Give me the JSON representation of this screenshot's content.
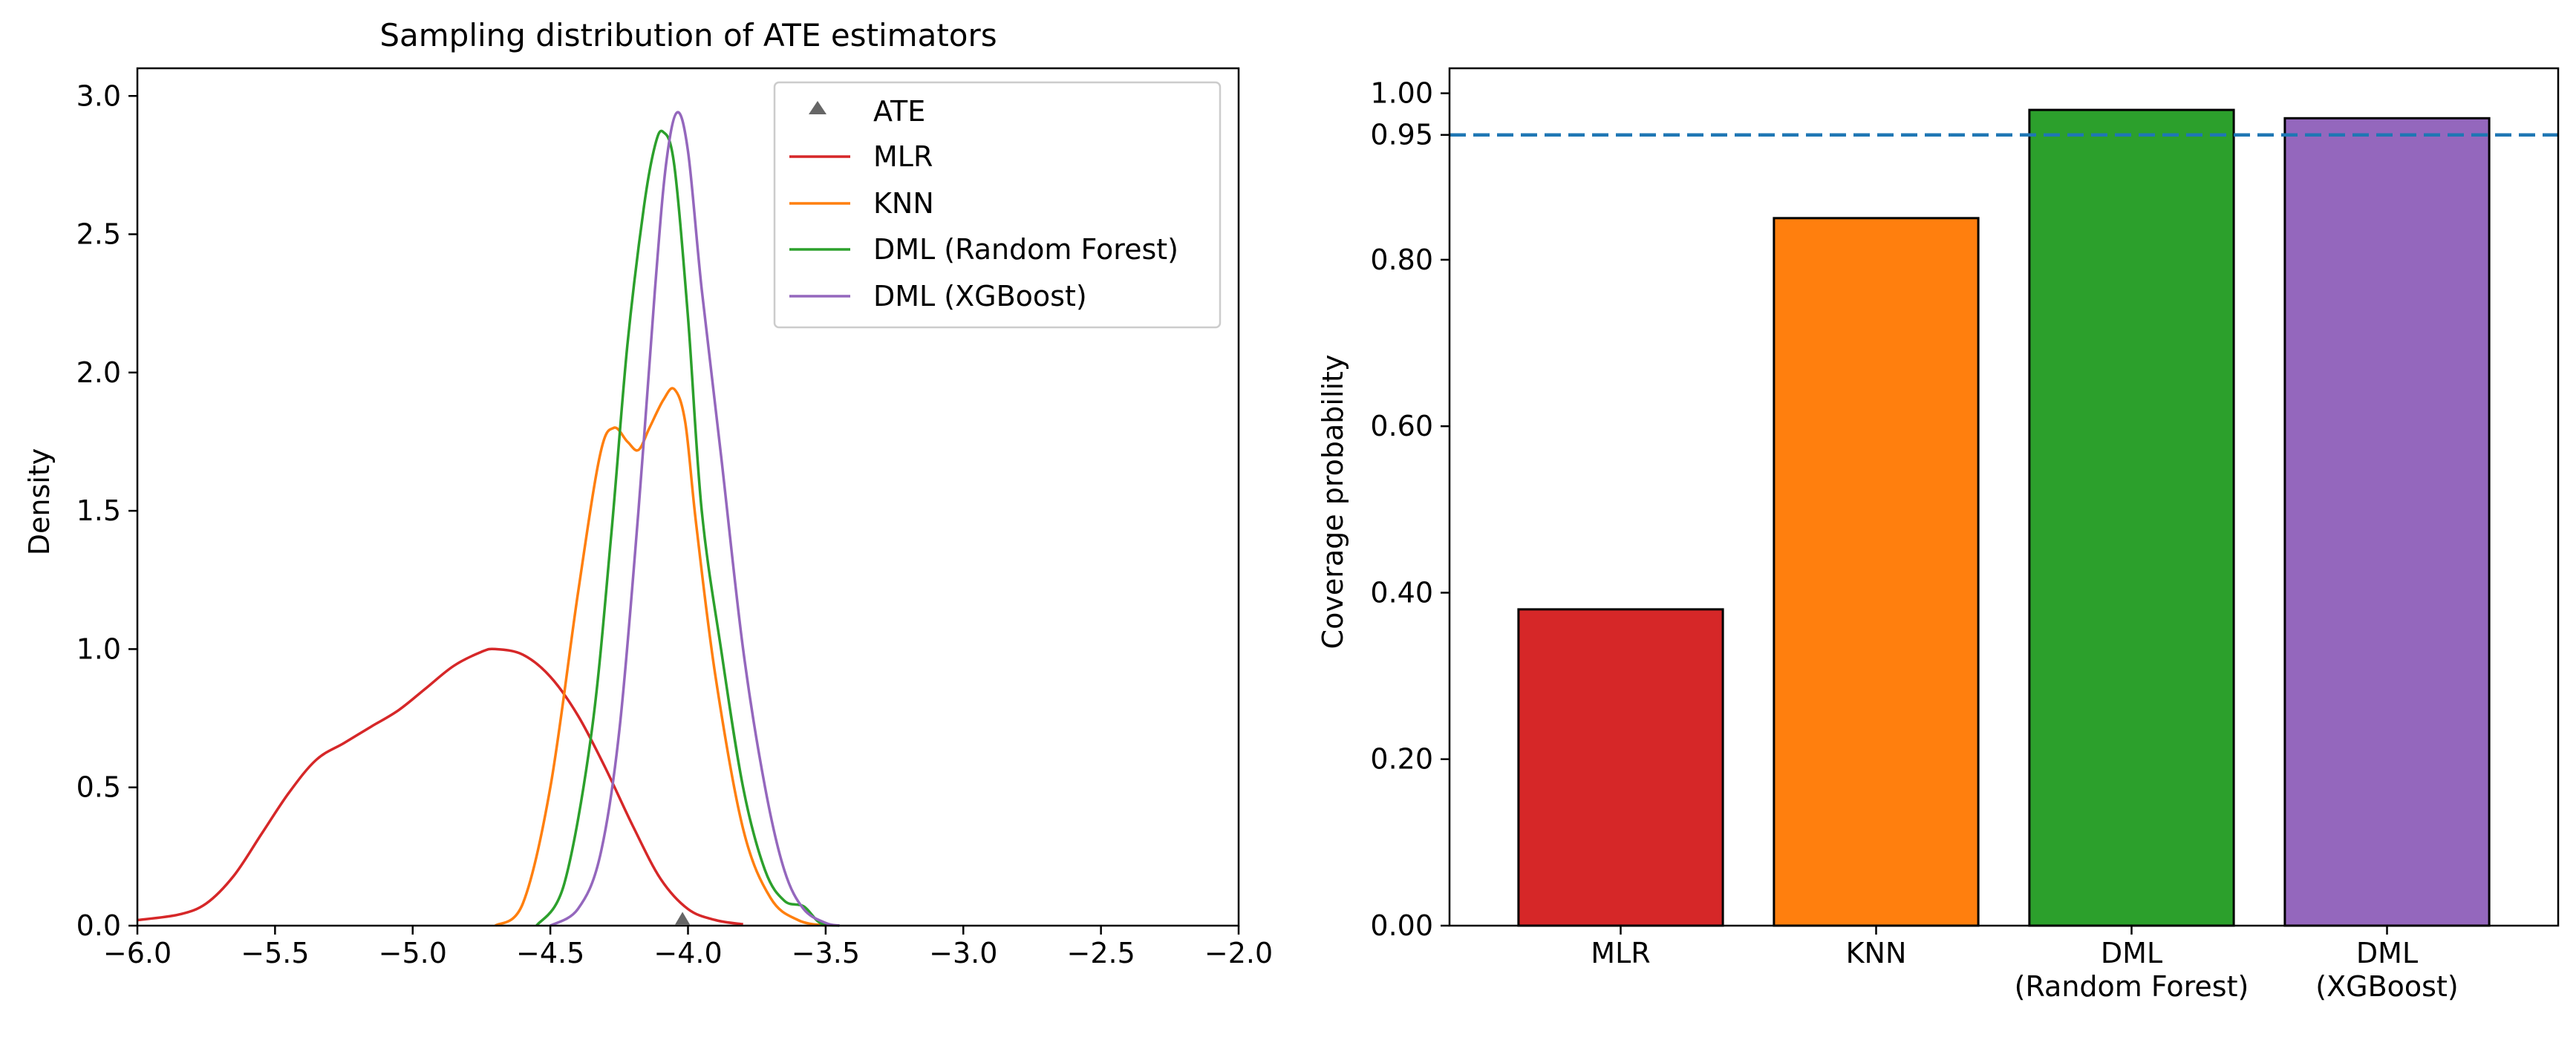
{
  "chart_data": [
    {
      "type": "line",
      "title": "Sampling distribution of ATE estimators",
      "xlabel": "",
      "ylabel": "Density",
      "xlim": [
        -6.0,
        -2.0
      ],
      "ylim": [
        0.0,
        3.1
      ],
      "xticks": [
        -6.0,
        -5.5,
        -5.0,
        -4.5,
        -4.0,
        -3.5,
        -3.0,
        -2.5,
        -2.0
      ],
      "xtick_labels": [
        "−6.0",
        "−5.5",
        "−5.0",
        "−4.5",
        "−4.0",
        "−3.5",
        "−3.0",
        "−2.5",
        "−2.0"
      ],
      "yticks": [
        0.0,
        0.5,
        1.0,
        1.5,
        2.0,
        2.5,
        3.0
      ],
      "ytick_labels": [
        "0.0",
        "0.5",
        "1.0",
        "1.5",
        "2.0",
        "2.5",
        "3.0"
      ],
      "grid": false,
      "legend_position": "top-right",
      "ate_marker": {
        "name": "ATE",
        "x": -4.02,
        "y": 0.02,
        "color": "#666666"
      },
      "series": [
        {
          "name": "MLR",
          "color": "#d62728",
          "points": [
            [
              -6.0,
              0.02
            ],
            [
              -5.85,
              0.04
            ],
            [
              -5.75,
              0.08
            ],
            [
              -5.65,
              0.18
            ],
            [
              -5.55,
              0.33
            ],
            [
              -5.45,
              0.48
            ],
            [
              -5.35,
              0.6
            ],
            [
              -5.25,
              0.66
            ],
            [
              -5.15,
              0.72
            ],
            [
              -5.05,
              0.78
            ],
            [
              -4.95,
              0.86
            ],
            [
              -4.85,
              0.94
            ],
            [
              -4.75,
              0.99
            ],
            [
              -4.7,
              1.0
            ],
            [
              -4.6,
              0.98
            ],
            [
              -4.5,
              0.9
            ],
            [
              -4.4,
              0.76
            ],
            [
              -4.3,
              0.57
            ],
            [
              -4.2,
              0.36
            ],
            [
              -4.1,
              0.17
            ],
            [
              -4.0,
              0.06
            ],
            [
              -3.9,
              0.02
            ],
            [
              -3.8,
              0.005
            ]
          ]
        },
        {
          "name": "KNN",
          "color": "#ff7f0e",
          "points": [
            [
              -4.7,
              0.0
            ],
            [
              -4.6,
              0.08
            ],
            [
              -4.5,
              0.5
            ],
            [
              -4.4,
              1.2
            ],
            [
              -4.32,
              1.7
            ],
            [
              -4.27,
              1.8
            ],
            [
              -4.22,
              1.75
            ],
            [
              -4.18,
              1.72
            ],
            [
              -4.14,
              1.8
            ],
            [
              -4.09,
              1.9
            ],
            [
              -4.05,
              1.94
            ],
            [
              -4.01,
              1.82
            ],
            [
              -3.97,
              1.45
            ],
            [
              -3.9,
              0.9
            ],
            [
              -3.8,
              0.35
            ],
            [
              -3.7,
              0.1
            ],
            [
              -3.6,
              0.02
            ],
            [
              -3.5,
              0.0
            ]
          ]
        },
        {
          "name": "DML (Random Forest)",
          "color": "#2ca02c",
          "points": [
            [
              -4.55,
              0.0
            ],
            [
              -4.45,
              0.15
            ],
            [
              -4.35,
              0.7
            ],
            [
              -4.28,
              1.4
            ],
            [
              -4.22,
              2.1
            ],
            [
              -4.16,
              2.6
            ],
            [
              -4.12,
              2.82
            ],
            [
              -4.09,
              2.87
            ],
            [
              -4.05,
              2.75
            ],
            [
              -4.0,
              2.2
            ],
            [
              -3.95,
              1.5
            ],
            [
              -3.88,
              1.0
            ],
            [
              -3.8,
              0.5
            ],
            [
              -3.72,
              0.2
            ],
            [
              -3.65,
              0.09
            ],
            [
              -3.58,
              0.07
            ],
            [
              -3.52,
              0.01
            ],
            [
              -3.45,
              0.0
            ]
          ]
        },
        {
          "name": "DML (XGBoost)",
          "color": "#9467bd",
          "points": [
            [
              -4.5,
              0.0
            ],
            [
              -4.4,
              0.06
            ],
            [
              -4.32,
              0.25
            ],
            [
              -4.25,
              0.7
            ],
            [
              -4.18,
              1.5
            ],
            [
              -4.12,
              2.3
            ],
            [
              -4.08,
              2.75
            ],
            [
              -4.04,
              2.94
            ],
            [
              -4.0,
              2.8
            ],
            [
              -3.95,
              2.3
            ],
            [
              -3.88,
              1.7
            ],
            [
              -3.8,
              1.0
            ],
            [
              -3.72,
              0.5
            ],
            [
              -3.65,
              0.2
            ],
            [
              -3.58,
              0.06
            ],
            [
              -3.5,
              0.01
            ],
            [
              -3.45,
              0.0
            ]
          ]
        }
      ]
    },
    {
      "type": "bar",
      "title": "",
      "xlabel": "",
      "ylabel": "Coverage probability",
      "ylim": [
        0.0,
        1.03
      ],
      "yticks": [
        0.0,
        0.2,
        0.4,
        0.6,
        0.8,
        0.95,
        1.0
      ],
      "ytick_labels": [
        "0.00",
        "0.20",
        "0.40",
        "0.60",
        "0.80",
        "0.95",
        "1.00"
      ],
      "grid": false,
      "categories": [
        {
          "lines": [
            "MLR"
          ]
        },
        {
          "lines": [
            "KNN"
          ]
        },
        {
          "lines": [
            "DML",
            "(Random Forest)"
          ]
        },
        {
          "lines": [
            "DML",
            "(XGBoost)"
          ]
        }
      ],
      "values": [
        0.38,
        0.85,
        0.98,
        0.97
      ],
      "colors": [
        "#d62728",
        "#ff7f0e",
        "#2ca02c",
        "#9467bd"
      ],
      "reference_line": {
        "y": 0.95,
        "color": "#1f77b4",
        "style": "dashed"
      }
    }
  ]
}
